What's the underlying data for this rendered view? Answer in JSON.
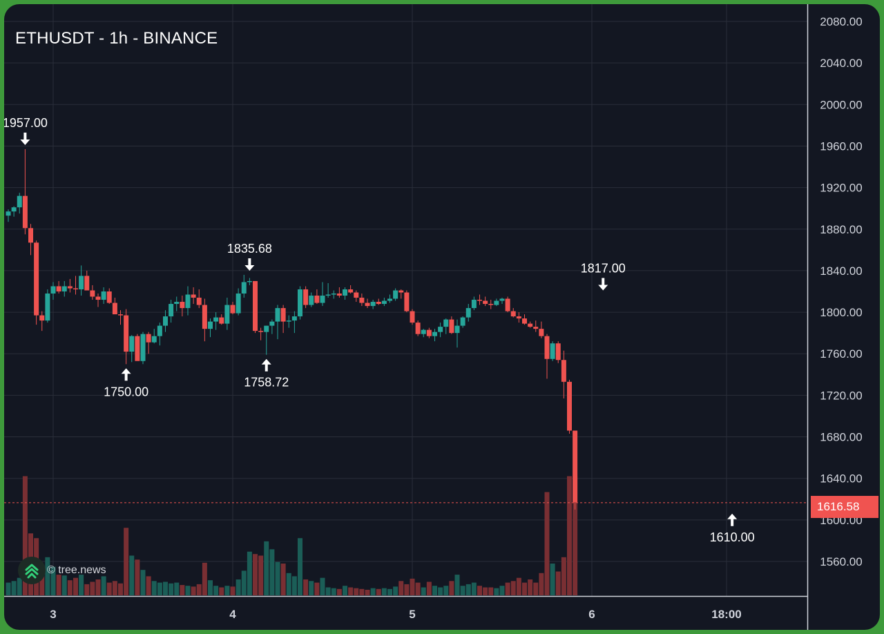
{
  "title": "ETHUSDT - 1h - BINANCE",
  "watermark": "© tree.news",
  "colors": {
    "background": "#131722",
    "up": "#26a69a",
    "down": "#ef5350",
    "grid": "#2a2e39",
    "text": "#d1d4dc",
    "frame": "#3e9a3b"
  },
  "last_price": "1616.58",
  "chart_data": {
    "type": "candlestick",
    "title": "ETHUSDT - 1h - BINANCE",
    "xlabel": "",
    "ylabel": "",
    "ylim": [
      1525,
      2095
    ],
    "y_ticks": [
      "2080.00",
      "2040.00",
      "2000.00",
      "1960.00",
      "1920.00",
      "1880.00",
      "1840.00",
      "1800.00",
      "1760.00",
      "1720.00",
      "1680.00",
      "1640.00",
      "1600.00",
      "1560.00"
    ],
    "x_ticks": [
      {
        "label": "3",
        "index": 8
      },
      {
        "label": "4",
        "index": 40
      },
      {
        "label": "5",
        "index": 72
      },
      {
        "label": "6",
        "index": 104
      },
      {
        "label": "18:00",
        "index": 128
      }
    ],
    "grid": true,
    "ohlcv": [
      [
        1893,
        1899,
        1887,
        1897,
        16
      ],
      [
        1897,
        1902,
        1892,
        1901,
        18
      ],
      [
        1901,
        1915,
        1895,
        1912,
        22
      ],
      [
        1912,
        1957,
        1875,
        1881,
        150
      ],
      [
        1881,
        1885,
        1855,
        1867,
        78
      ],
      [
        1867,
        1869,
        1788,
        1797,
        72
      ],
      [
        1797,
        1801,
        1782,
        1792,
        30
      ],
      [
        1792,
        1822,
        1790,
        1818,
        48
      ],
      [
        1818,
        1829,
        1812,
        1825,
        36
      ],
      [
        1825,
        1830,
        1818,
        1820,
        26
      ],
      [
        1820,
        1830,
        1815,
        1825,
        25
      ],
      [
        1825,
        1832,
        1819,
        1823,
        19
      ],
      [
        1823,
        1835,
        1817,
        1822,
        22
      ],
      [
        1822,
        1845,
        1816,
        1835,
        26
      ],
      [
        1835,
        1840,
        1822,
        1821,
        14
      ],
      [
        1821,
        1826,
        1812,
        1815,
        17
      ],
      [
        1815,
        1818,
        1805,
        1812,
        20
      ],
      [
        1812,
        1824,
        1808,
        1820,
        24
      ],
      [
        1820,
        1823,
        1808,
        1809,
        16
      ],
      [
        1809,
        1814,
        1800,
        1798,
        18
      ],
      [
        1798,
        1802,
        1788,
        1797,
        15
      ],
      [
        1797,
        1803,
        1750,
        1762,
        85
      ],
      [
        1762,
        1778,
        1752,
        1777,
        50
      ],
      [
        1777,
        1779,
        1754,
        1753,
        45
      ],
      [
        1753,
        1781,
        1750,
        1779,
        32
      ],
      [
        1779,
        1781,
        1760,
        1771,
        24
      ],
      [
        1771,
        1784,
        1770,
        1777,
        18
      ],
      [
        1777,
        1790,
        1768,
        1787,
        16
      ],
      [
        1787,
        1802,
        1781,
        1796,
        17
      ],
      [
        1796,
        1812,
        1790,
        1808,
        15
      ],
      [
        1808,
        1815,
        1801,
        1810,
        16
      ],
      [
        1810,
        1816,
        1796,
        1804,
        13
      ],
      [
        1804,
        1825,
        1797,
        1817,
        12
      ],
      [
        1817,
        1824,
        1808,
        1814,
        11
      ],
      [
        1814,
        1822,
        1804,
        1807,
        14
      ],
      [
        1807,
        1813,
        1772,
        1784,
        41
      ],
      [
        1784,
        1794,
        1776,
        1791,
        19
      ],
      [
        1791,
        1800,
        1783,
        1795,
        12
      ],
      [
        1795,
        1798,
        1788,
        1789,
        10
      ],
      [
        1789,
        1814,
        1783,
        1807,
        12
      ],
      [
        1807,
        1810,
        1798,
        1799,
        11
      ],
      [
        1799,
        1823,
        1797,
        1818,
        20
      ],
      [
        1818,
        1836,
        1814,
        1829,
        31
      ],
      [
        1829,
        1833,
        1826,
        1830,
        55
      ],
      [
        1830,
        1830,
        1780,
        1782,
        52
      ],
      [
        1782,
        1785,
        1773,
        1781,
        50
      ],
      [
        1781,
        1787,
        1759,
        1787,
        68
      ],
      [
        1787,
        1793,
        1779,
        1791,
        58
      ],
      [
        1791,
        1807,
        1774,
        1804,
        42
      ],
      [
        1804,
        1807,
        1780,
        1791,
        40
      ],
      [
        1791,
        1797,
        1785,
        1792,
        28
      ],
      [
        1792,
        1801,
        1780,
        1796,
        24
      ],
      [
        1796,
        1825,
        1793,
        1822,
        72
      ],
      [
        1822,
        1825,
        1804,
        1807,
        20
      ],
      [
        1807,
        1819,
        1805,
        1816,
        18
      ],
      [
        1816,
        1822,
        1808,
        1809,
        16
      ],
      [
        1809,
        1829,
        1806,
        1816,
        22
      ],
      [
        1816,
        1828,
        1814,
        1817,
        10
      ],
      [
        1817,
        1821,
        1813,
        1818,
        9
      ],
      [
        1818,
        1824,
        1814,
        1816,
        8
      ],
      [
        1816,
        1824,
        1812,
        1822,
        12
      ],
      [
        1822,
        1826,
        1818,
        1819,
        10
      ],
      [
        1819,
        1821,
        1810,
        1814,
        9
      ],
      [
        1814,
        1818,
        1806,
        1809,
        8
      ],
      [
        1809,
        1813,
        1804,
        1806,
        7
      ],
      [
        1806,
        1812,
        1803,
        1810,
        9
      ],
      [
        1810,
        1813,
        1807,
        1808,
        8
      ],
      [
        1808,
        1814,
        1806,
        1811,
        9
      ],
      [
        1811,
        1817,
        1809,
        1813,
        8
      ],
      [
        1813,
        1823,
        1811,
        1821,
        11
      ],
      [
        1821,
        1822,
        1813,
        1819,
        18
      ],
      [
        1819,
        1821,
        1800,
        1801,
        14
      ],
      [
        1801,
        1803,
        1788,
        1790,
        21
      ],
      [
        1790,
        1792,
        1777,
        1779,
        16
      ],
      [
        1779,
        1784,
        1776,
        1783,
        10
      ],
      [
        1783,
        1785,
        1775,
        1777,
        17
      ],
      [
        1777,
        1784,
        1772,
        1781,
        12
      ],
      [
        1781,
        1790,
        1776,
        1786,
        10
      ],
      [
        1786,
        1794,
        1779,
        1793,
        12
      ],
      [
        1793,
        1796,
        1779,
        1780,
        18
      ],
      [
        1780,
        1793,
        1766,
        1787,
        26
      ],
      [
        1787,
        1796,
        1785,
        1795,
        12
      ],
      [
        1795,
        1808,
        1791,
        1804,
        14
      ],
      [
        1804,
        1815,
        1802,
        1812,
        16
      ],
      [
        1812,
        1817,
        1807,
        1811,
        12
      ],
      [
        1811,
        1815,
        1806,
        1808,
        10
      ],
      [
        1808,
        1812,
        1803,
        1807,
        10
      ],
      [
        1807,
        1813,
        1806,
        1811,
        9
      ],
      [
        1811,
        1814,
        1808,
        1813,
        12
      ],
      [
        1813,
        1815,
        1800,
        1801,
        16
      ],
      [
        1801,
        1804,
        1795,
        1796,
        18
      ],
      [
        1796,
        1800,
        1790,
        1794,
        22
      ],
      [
        1794,
        1798,
        1788,
        1789,
        16
      ],
      [
        1789,
        1791,
        1785,
        1786,
        20
      ],
      [
        1786,
        1792,
        1781,
        1784,
        16
      ],
      [
        1784,
        1791,
        1775,
        1777,
        28
      ],
      [
        1777,
        1779,
        1736,
        1755,
        130
      ],
      [
        1755,
        1772,
        1753,
        1770,
        40
      ],
      [
        1770,
        1772,
        1751,
        1754,
        30
      ],
      [
        1754,
        1763,
        1717,
        1733,
        48
      ],
      [
        1733,
        1735,
        1683,
        1686,
        150
      ],
      [
        1686,
        1686,
        1610,
        1617,
        150
      ]
    ]
  },
  "annotations": [
    {
      "label": "1957.00",
      "index": 3,
      "price": 1957,
      "type": "high"
    },
    {
      "label": "1750.00",
      "index": 21,
      "price": 1750,
      "type": "low"
    },
    {
      "label": "1835.68",
      "index": 43,
      "price": 1836,
      "type": "high"
    },
    {
      "label": "1758.72",
      "index": 46,
      "price": 1759,
      "type": "low"
    },
    {
      "label": "1817.00",
      "index": 106,
      "price": 1817,
      "type": "high"
    },
    {
      "label": "1610.00",
      "index": 129,
      "price": 1610,
      "type": "low"
    }
  ]
}
